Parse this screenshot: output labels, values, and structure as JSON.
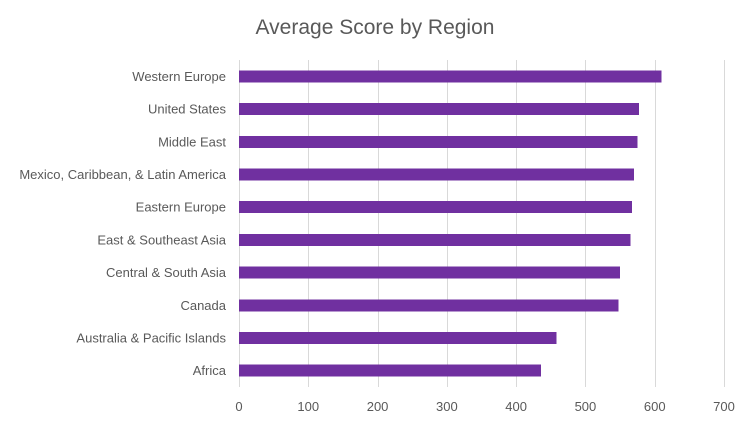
{
  "chart_data": {
    "type": "bar",
    "orientation": "horizontal",
    "title": "Average Score by Region",
    "xlabel": "",
    "ylabel": "",
    "categories": [
      "Western Europe",
      "United States",
      "Middle East",
      "Mexico, Caribbean, & Latin America",
      "Eastern Europe",
      "East & Southeast Asia",
      "Central & South Asia",
      "Canada",
      "Australia & Pacific Islands",
      "Africa"
    ],
    "values": [
      610,
      577,
      575,
      570,
      567,
      565,
      550,
      548,
      458,
      436
    ],
    "xlim": [
      0,
      700
    ],
    "xticks": [
      "0",
      "100",
      "200",
      "300",
      "400",
      "500",
      "600",
      "700"
    ],
    "grid": true,
    "legend": "none",
    "bar_color": "#7030A0"
  }
}
